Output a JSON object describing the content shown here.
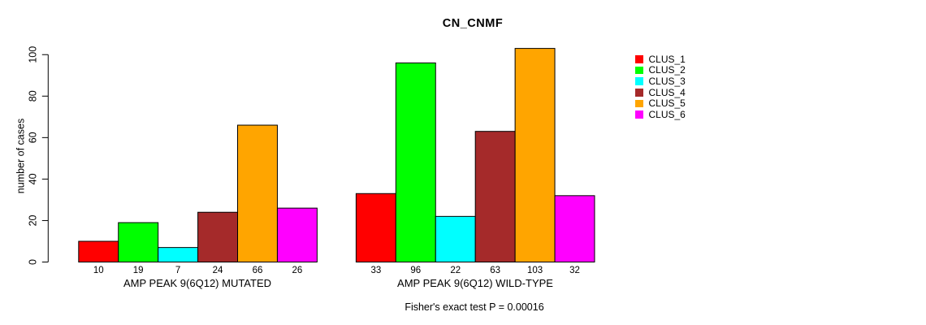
{
  "figure": {
    "title": "CN_CNMF",
    "footer": "Fisher's exact test P = 0.00016"
  },
  "chart_data": {
    "type": "bar",
    "title": "CN_CNMF",
    "xlabel": "",
    "ylabel": "number of cases",
    "ylim": [
      0,
      103
    ],
    "yticks": [
      0,
      20,
      40,
      60,
      80,
      100
    ],
    "grid": false,
    "legend_position": "right",
    "legend": [
      "CLUS_1",
      "CLUS_2",
      "CLUS_3",
      "CLUS_4",
      "CLUS_5",
      "CLUS_6"
    ],
    "series_colors": [
      "#FF0000",
      "#00FF00",
      "#00FFFF",
      "#A52A2A",
      "#FFA500",
      "#FF00FF"
    ],
    "bar_border_color": "#000000",
    "groups": [
      {
        "label": "AMP PEAK 9(6Q12) MUTATED",
        "values": [
          10,
          19,
          7,
          24,
          66,
          26
        ]
      },
      {
        "label": "AMP PEAK 9(6Q12) WILD-TYPE",
        "values": [
          33,
          96,
          22,
          63,
          103,
          32
        ]
      }
    ],
    "bar_value_labels_shown": true,
    "annotation": "Fisher's exact test P = 0.00016"
  }
}
